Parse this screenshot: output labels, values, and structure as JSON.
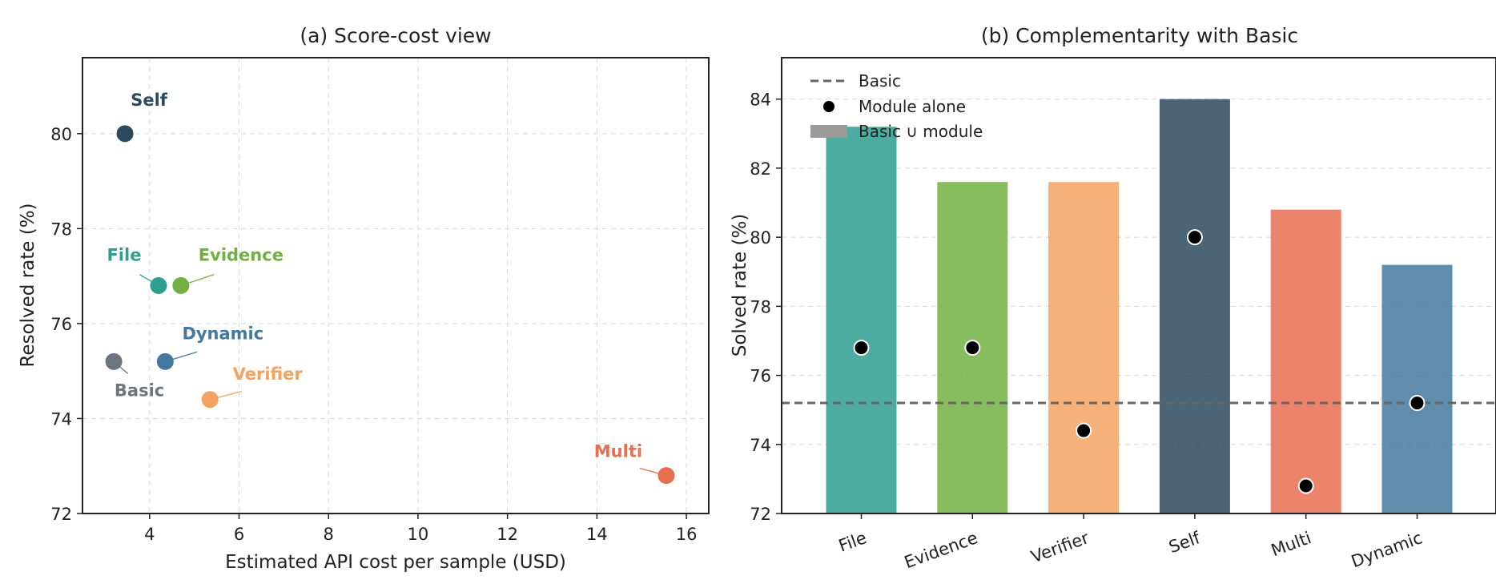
{
  "chart_data": [
    {
      "type": "scatter",
      "title": "(a) Score-cost view",
      "xlabel": "Estimated API cost per sample (USD)",
      "ylabel": "Resolved rate (%)",
      "xlim": [
        2.5,
        16.5
      ],
      "ylim": [
        72,
        81.6
      ],
      "xticks": [
        4,
        6,
        8,
        10,
        12,
        14,
        16
      ],
      "yticks": [
        72,
        74,
        76,
        78,
        80
      ],
      "grid": true,
      "points": [
        {
          "label": "Self",
          "x": 3.45,
          "y": 80.0,
          "color": "#2b4a5e"
        },
        {
          "label": "File",
          "x": 4.2,
          "y": 76.8,
          "color": "#2e9e8f"
        },
        {
          "label": "Evidence",
          "x": 4.7,
          "y": 76.8,
          "color": "#72b043"
        },
        {
          "label": "Dynamic",
          "x": 4.35,
          "y": 75.2,
          "color": "#44799e"
        },
        {
          "label": "Basic",
          "x": 3.2,
          "y": 75.2,
          "color": "#6c757d"
        },
        {
          "label": "Verifier",
          "x": 5.35,
          "y": 74.4,
          "color": "#f4a261"
        },
        {
          "label": "Multi",
          "x": 15.55,
          "y": 72.8,
          "color": "#e76f51"
        }
      ]
    },
    {
      "type": "bar",
      "title": "(b) Complementarity with Basic",
      "xlabel": "",
      "ylabel": "Solved rate (%)",
      "ylim": [
        72,
        85.2
      ],
      "yticks": [
        72,
        74,
        76,
        78,
        80,
        82,
        84
      ],
      "grid": true,
      "categories": [
        "File",
        "Evidence",
        "Verifier",
        "Self",
        "Multi",
        "Dynamic"
      ],
      "colors": [
        "#2e9e8f",
        "#72b043",
        "#f4a261",
        "#2b4a5e",
        "#e76f51",
        "#44799e"
      ],
      "series": [
        {
          "name": "Basic ∪ module",
          "values": [
            83.2,
            81.6,
            81.6,
            84.0,
            80.8,
            79.2
          ]
        },
        {
          "name": "Module alone",
          "values": [
            76.8,
            76.8,
            74.4,
            80.0,
            72.8,
            75.2
          ]
        }
      ],
      "baseline": {
        "name": "Basic",
        "value": 75.2
      },
      "legend_position": "top-left"
    }
  ]
}
